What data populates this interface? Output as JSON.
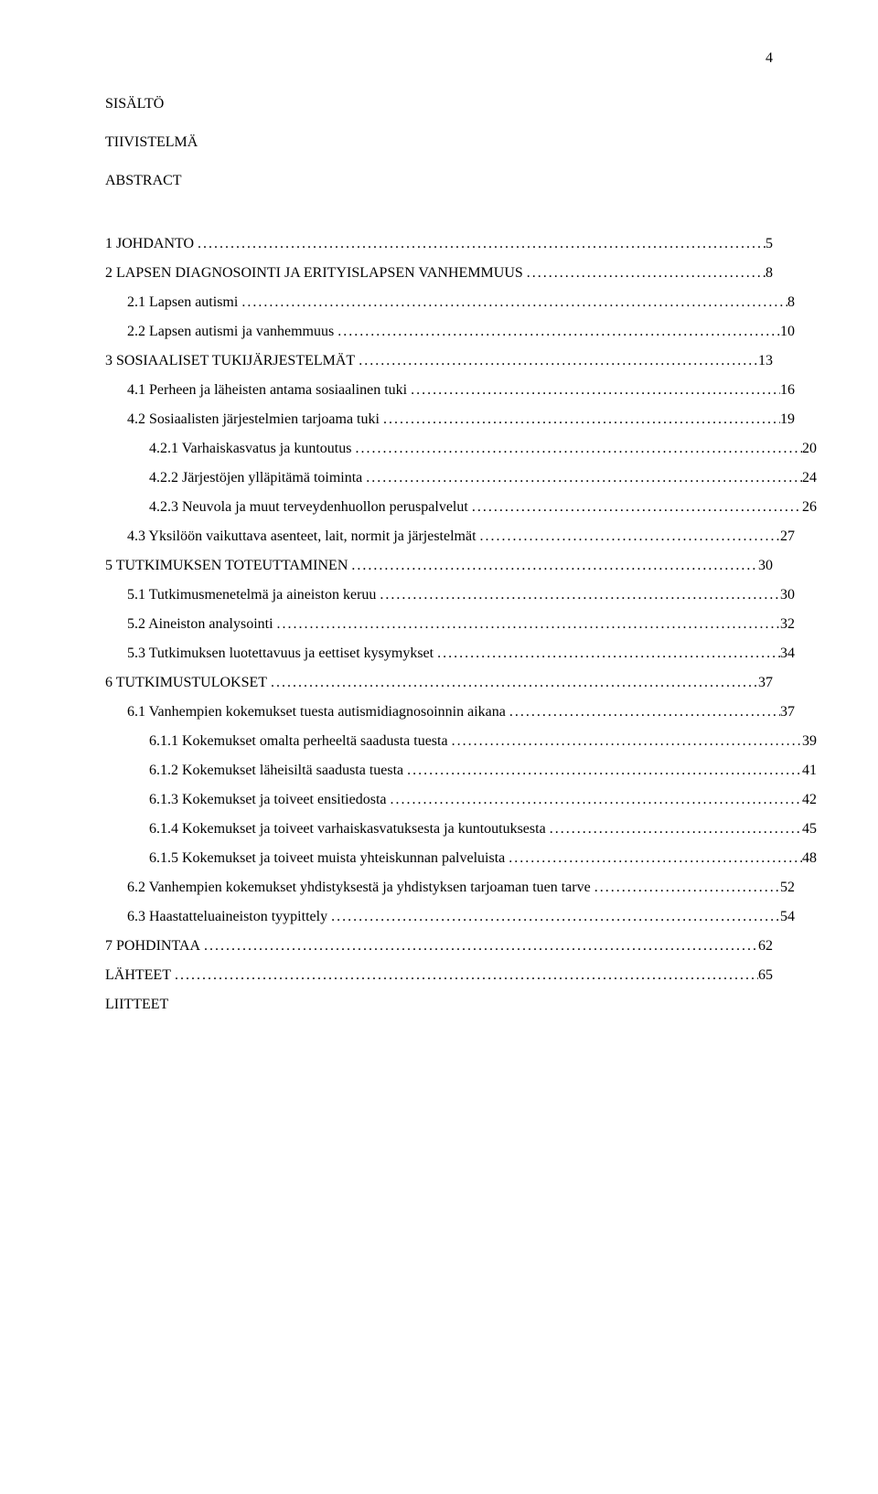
{
  "page_number": "4",
  "front_matter": {
    "heading": "SISÄLTÖ",
    "sub1": "TIIVISTELMÄ",
    "sub2": "ABSTRACT"
  },
  "toc": [
    {
      "title": "1 JOHDANTO",
      "page": "5",
      "indent": 0
    },
    {
      "title": "2 LAPSEN DIAGNOSOINTI JA ERITYISLAPSEN VANHEMMUUS",
      "page": "8",
      "indent": 0
    },
    {
      "title": "2.1 Lapsen autismi",
      "page": "8",
      "indent": 1
    },
    {
      "title": "2.2 Lapsen autismi ja vanhemmuus",
      "page": "10",
      "indent": 1
    },
    {
      "title": "3 SOSIAALISET TUKIJÄRJESTELMÄT",
      "page": "13",
      "indent": 0
    },
    {
      "title": "4.1 Perheen ja läheisten antama sosiaalinen tuki",
      "page": "16",
      "indent": 1
    },
    {
      "title": "4.2 Sosiaalisten järjestelmien tarjoama tuki",
      "page": "19",
      "indent": 1
    },
    {
      "title": "4.2.1 Varhaiskasvatus ja kuntoutus",
      "page": "20",
      "indent": 2
    },
    {
      "title": "4.2.2 Järjestöjen ylläpitämä toiminta",
      "page": "24",
      "indent": 2
    },
    {
      "title": "4.2.3 Neuvola ja muut terveydenhuollon peruspalvelut",
      "page": "26",
      "indent": 2
    },
    {
      "title": "4.3 Yksilöön vaikuttava asenteet, lait, normit ja järjestelmät",
      "page": "27",
      "indent": 1
    },
    {
      "title": "5 TUTKIMUKSEN TOTEUTTAMINEN",
      "page": "30",
      "indent": 0
    },
    {
      "title": "5.1 Tutkimusmenetelmä ja aineiston keruu",
      "page": "30",
      "indent": 1
    },
    {
      "title": "5.2 Aineiston analysointi",
      "page": "32",
      "indent": 1
    },
    {
      "title": "5.3 Tutkimuksen luotettavuus ja eettiset kysymykset",
      "page": "34",
      "indent": 1
    },
    {
      "title": "6 TUTKIMUSTULOKSET",
      "page": "37",
      "indent": 0
    },
    {
      "title": "6.1 Vanhempien kokemukset tuesta autismidiagnosoinnin aikana",
      "page": "37",
      "indent": 1
    },
    {
      "title": "6.1.1 Kokemukset omalta perheeltä saadusta tuesta",
      "page": "39",
      "indent": 2
    },
    {
      "title": "6.1.2 Kokemukset läheisiltä saadusta tuesta",
      "page": "41",
      "indent": 2
    },
    {
      "title": "6.1.3 Kokemukset ja toiveet ensitiedosta",
      "page": "42",
      "indent": 2
    },
    {
      "title": "6.1.4 Kokemukset ja toiveet varhaiskasvatuksesta ja kuntoutuksesta",
      "page": "45",
      "indent": 2
    },
    {
      "title": "6.1.5 Kokemukset ja toiveet muista yhteiskunnan palveluista",
      "page": "48",
      "indent": 2
    },
    {
      "title": "6.2 Vanhempien kokemukset yhdistyksestä ja yhdistyksen tarjoaman tuen tarve",
      "page": "52",
      "indent": 1
    },
    {
      "title": "6.3 Haastatteluaineiston tyypittely",
      "page": "54",
      "indent": 1
    },
    {
      "title": "7 POHDINTAA",
      "page": "62",
      "indent": 0
    },
    {
      "title": "LÄHTEET",
      "page": "65",
      "indent": 0
    },
    {
      "title": "LIITTEET",
      "page": "",
      "indent": 0
    }
  ],
  "style": {
    "font_family": "Times New Roman",
    "font_size_pt": 12,
    "text_color": "#000000",
    "background_color": "#ffffff",
    "leader_char": "."
  }
}
